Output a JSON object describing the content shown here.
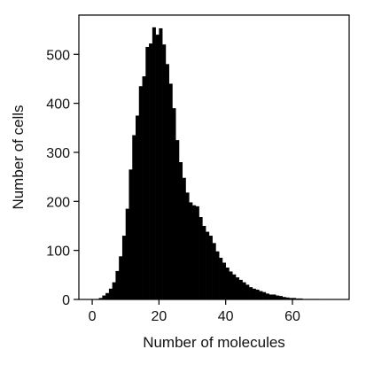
{
  "chart_data": {
    "type": "bar",
    "subtype": "histogram",
    "title": "",
    "xlabel": "Number of molecules",
    "ylabel": "Number of cells",
    "xlim": [
      -4,
      77
    ],
    "ylim": [
      0,
      580
    ],
    "xticks": [
      0,
      20,
      40,
      60
    ],
    "yticks": [
      0,
      100,
      200,
      300,
      400,
      500
    ],
    "xtick_labels": [
      "0",
      "20",
      "40",
      "60"
    ],
    "ytick_labels": [
      "0",
      "100",
      "200",
      "300",
      "400",
      "500"
    ],
    "grid": false,
    "legend": "none",
    "bar_color": "#000000",
    "bin_width": 1,
    "bin_starts": [
      1,
      2,
      3,
      4,
      5,
      6,
      7,
      8,
      9,
      10,
      11,
      12,
      13,
      14,
      15,
      16,
      17,
      18,
      19,
      20,
      21,
      22,
      23,
      24,
      25,
      26,
      27,
      28,
      29,
      30,
      31,
      32,
      33,
      34,
      35,
      36,
      37,
      38,
      39,
      40,
      41,
      42,
      43,
      44,
      45,
      46,
      47,
      48,
      49,
      50,
      51,
      52,
      53,
      54,
      55,
      56,
      57,
      58,
      59,
      60,
      61,
      62,
      63,
      64,
      65,
      66,
      67,
      68,
      69,
      70,
      71,
      72,
      73
    ],
    "counts": [
      1,
      3,
      8,
      13,
      22,
      35,
      58,
      88,
      130,
      185,
      265,
      335,
      375,
      435,
      455,
      515,
      522,
      555,
      540,
      553,
      520,
      480,
      440,
      390,
      325,
      280,
      248,
      218,
      198,
      192,
      190,
      168,
      150,
      138,
      130,
      115,
      98,
      85,
      75,
      65,
      57,
      51,
      45,
      40,
      35,
      30,
      25,
      22,
      20,
      17,
      15,
      12,
      10,
      10,
      8,
      7,
      5,
      4,
      3,
      3,
      2,
      2,
      1,
      1,
      1,
      1,
      1,
      0,
      0,
      0,
      0,
      0,
      0
    ]
  }
}
